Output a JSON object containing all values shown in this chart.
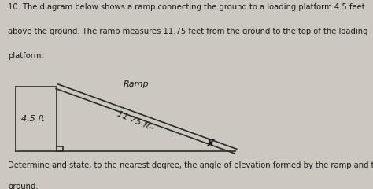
{
  "question_text_line1": "10. The diagram below shows a ramp connecting the ground to a loading platform 4.5 feet",
  "question_text_line2": "above the ground. The ramp measures 11.75 feet from the ground to the top of the loading",
  "question_text_line3": "platform.",
  "bottom_text_line1": "Determine and state, to the nearest degree, the angle of elevation formed by the ramp and the",
  "bottom_text_line2": "ground.",
  "ramp_label": "Ramp",
  "ramp_length_label": "11.75 ft–",
  "height_label": "4.5 ft",
  "angle_label": "X",
  "bg_color": "#ccc8c0",
  "text_color": "#1a1a1a",
  "line_color": "#2a2a2a",
  "fig_width": 4.74,
  "fig_height": 2.4,
  "dpi": 100
}
